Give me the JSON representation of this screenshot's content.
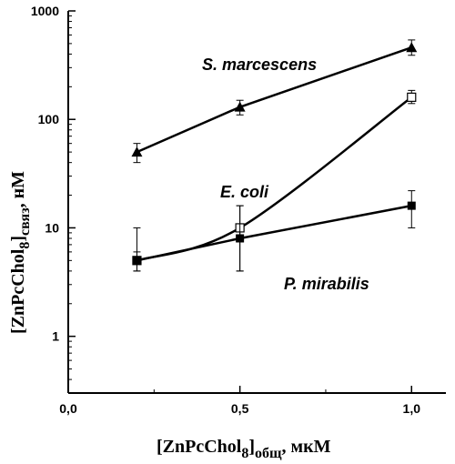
{
  "chart_data": {
    "type": "line",
    "x_axis": {
      "range": [
        0.0,
        1.1
      ],
      "ticks": [
        0.0,
        0.5,
        1.0
      ],
      "tick_labels": [
        "0,0",
        "0,5",
        "1,0"
      ],
      "title": {
        "main": "[ZnPcChol",
        "sub1": "8",
        "mid": "]",
        "sub2": "общ",
        "tail": ", мкМ"
      }
    },
    "y_axis": {
      "scale": "log",
      "range": [
        0.3,
        1000
      ],
      "ticks": [
        1,
        10,
        100,
        1000
      ],
      "tick_labels": [
        "1",
        "10",
        "100",
        "1000"
      ],
      "title": {
        "main": "[ZnPcChol",
        "sub1": "8",
        "mid": "]",
        "sub2": "связ",
        "tail": ", нМ"
      }
    },
    "grid": false,
    "series": [
      {
        "name": "S. marcescens",
        "marker": "triangle-filled",
        "curve": "straight",
        "x": [
          0.2,
          0.5,
          1.0
        ],
        "y": [
          50,
          130,
          460
        ],
        "err_low": [
          40,
          110,
          390
        ],
        "err_high": [
          60,
          150,
          540
        ]
      },
      {
        "name": "E. coli",
        "marker": "square-open",
        "curve": "smooth",
        "x": [
          0.2,
          0.5,
          1.0
        ],
        "y": [
          5,
          10,
          160
        ],
        "err_low": [
          4,
          4,
          140
        ],
        "err_high": [
          6,
          16,
          185
        ]
      },
      {
        "name": "P. mirabilis",
        "marker": "square-filled",
        "curve": "straight",
        "x": [
          0.2,
          0.5,
          1.0
        ],
        "y": [
          5,
          8,
          16
        ],
        "err_low": [
          4,
          4,
          10
        ],
        "err_high": [
          10,
          16,
          22
        ]
      }
    ]
  }
}
